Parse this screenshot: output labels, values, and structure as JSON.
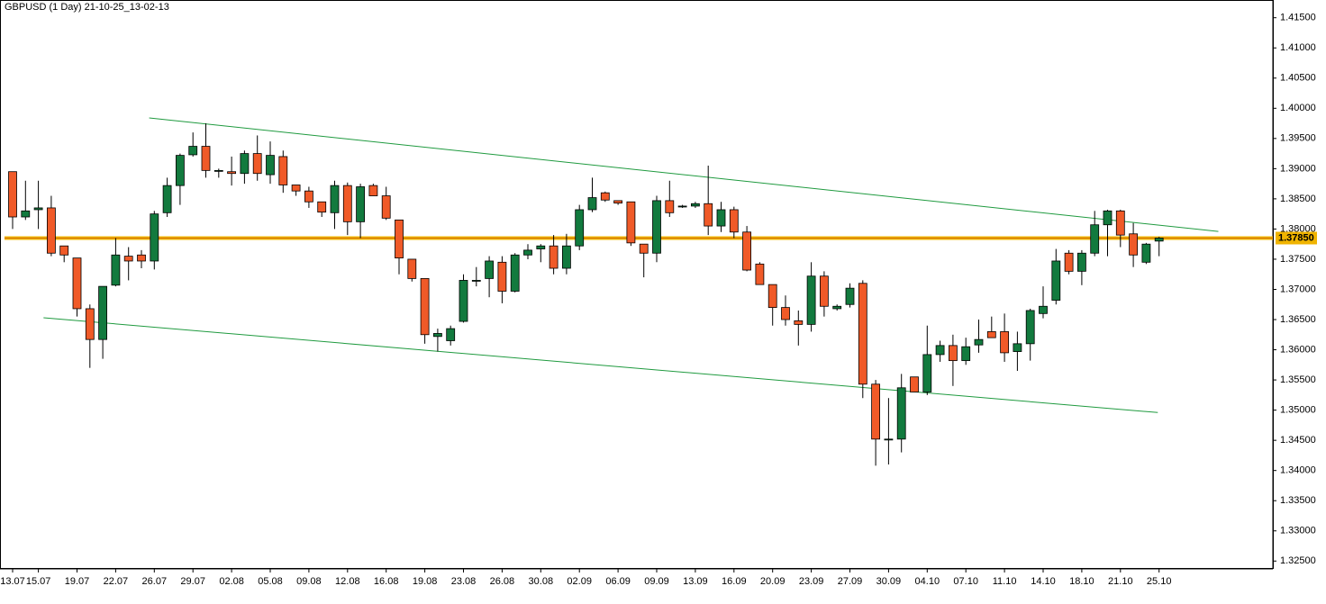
{
  "chart_data": {
    "type": "candlestick",
    "title": "GBPUSD (1 Day) 21-10-25_13-02-13",
    "categories": [
      "13.07",
      null,
      "15.07",
      null,
      null,
      "19.07",
      null,
      null,
      "22.07",
      null,
      null,
      "26.07",
      null,
      null,
      "29.07",
      null,
      null,
      "02.08",
      null,
      null,
      "05.08",
      null,
      null,
      "09.08",
      null,
      null,
      "12.08",
      null,
      null,
      "16.08",
      null,
      null,
      "19.08",
      null,
      null,
      "23.08",
      null,
      null,
      "26.08",
      null,
      null,
      "30.08",
      null,
      null,
      "02.09",
      null,
      null,
      "06.09",
      null,
      null,
      "09.09",
      null,
      null,
      "13.09",
      null,
      null,
      "16.09",
      null,
      null,
      "20.09",
      null,
      null,
      "23.09",
      null,
      null,
      "27.09",
      null,
      null,
      "30.09",
      null,
      null,
      "04.10",
      null,
      null,
      "07.10",
      null,
      null,
      "11.10",
      null,
      null,
      "14.10",
      null,
      null,
      "18.10",
      null,
      null,
      "21.10",
      null,
      null,
      "25.10"
    ],
    "open": [
      1.3895,
      1.382,
      1.3832,
      1.3835,
      1.3772,
      1.3752,
      1.3668,
      1.3617,
      1.3707,
      1.3755,
      1.3757,
      1.3747,
      1.3827,
      1.3872,
      1.3923,
      1.3937,
      1.3897,
      1.3895,
      1.3892,
      1.3925,
      1.389,
      1.392,
      1.3873,
      1.3863,
      1.3845,
      1.3827,
      1.3872,
      1.3812,
      1.3872,
      1.3855,
      1.3815,
      1.375,
      1.3718,
      1.3622,
      1.3615,
      1.3647,
      1.3715,
      1.3718,
      1.3745,
      1.3697,
      1.3757,
      1.3767,
      1.3772,
      1.3735,
      1.3772,
      1.3832,
      1.386,
      1.3847,
      1.3845,
      1.3775,
      1.376,
      1.3847,
      1.3838,
      1.3838,
      1.3842,
      1.3805,
      1.3832,
      1.3795,
      1.3742,
      1.3708,
      1.367,
      1.3648,
      1.3642,
      1.3722,
      1.3668,
      1.3675,
      1.371,
      1.3543,
      1.3452,
      1.3452,
      1.3555,
      1.353,
      1.3592,
      1.3607,
      1.3582,
      1.3608,
      1.363,
      1.363,
      1.3597,
      1.361,
      1.366,
      1.3682,
      1.376,
      1.373,
      1.376,
      1.3807,
      1.383,
      1.3792,
      1.3745,
      1.378
    ],
    "high": [
      1.3895,
      1.388,
      1.388,
      1.3855,
      1.3772,
      1.3752,
      1.3675,
      1.3705,
      1.3785,
      1.377,
      1.3765,
      1.383,
      1.3885,
      1.3925,
      1.396,
      1.3975,
      1.39,
      1.392,
      1.393,
      1.3955,
      1.3945,
      1.393,
      1.3873,
      1.387,
      1.3845,
      1.388,
      1.3877,
      1.3875,
      1.3875,
      1.387,
      1.3815,
      1.375,
      1.3718,
      1.3635,
      1.364,
      1.3725,
      1.3737,
      1.3755,
      1.3755,
      1.376,
      1.3775,
      1.3775,
      1.379,
      1.3792,
      1.384,
      1.3885,
      1.3862,
      1.3847,
      1.3845,
      1.3775,
      1.3855,
      1.388,
      1.384,
      1.3845,
      1.3905,
      1.3845,
      1.3837,
      1.3805,
      1.3745,
      1.3708,
      1.369,
      1.3665,
      1.3745,
      1.373,
      1.3675,
      1.371,
      1.3715,
      1.355,
      1.352,
      1.356,
      1.3555,
      1.364,
      1.3615,
      1.3625,
      1.362,
      1.365,
      1.3655,
      1.366,
      1.363,
      1.3668,
      1.3705,
      1.3767,
      1.3765,
      1.3765,
      1.383,
      1.3832,
      1.3832,
      1.381,
      1.3777,
      1.3787
    ],
    "low": [
      1.38,
      1.3815,
      1.38,
      1.3755,
      1.3745,
      1.3655,
      1.357,
      1.3585,
      1.3705,
      1.3715,
      1.3735,
      1.3733,
      1.382,
      1.384,
      1.392,
      1.3885,
      1.3885,
      1.3872,
      1.3875,
      1.388,
      1.3875,
      1.386,
      1.3855,
      1.3835,
      1.382,
      1.38,
      1.379,
      1.3785,
      1.3855,
      1.3815,
      1.3725,
      1.3713,
      1.361,
      1.3597,
      1.3607,
      1.3645,
      1.3705,
      1.3687,
      1.3677,
      1.3695,
      1.375,
      1.3745,
      1.3725,
      1.3725,
      1.3765,
      1.3828,
      1.3845,
      1.384,
      1.3772,
      1.372,
      1.3745,
      1.382,
      1.3835,
      1.3835,
      1.379,
      1.3795,
      1.3785,
      1.373,
      1.3708,
      1.364,
      1.364,
      1.3607,
      1.363,
      1.3655,
      1.3665,
      1.367,
      1.352,
      1.3408,
      1.341,
      1.343,
      1.353,
      1.3525,
      1.358,
      1.354,
      1.3575,
      1.3595,
      1.362,
      1.358,
      1.3565,
      1.3582,
      1.3652,
      1.3675,
      1.3725,
      1.3707,
      1.3755,
      1.3755,
      1.377,
      1.3737,
      1.3742,
      1.3755
    ],
    "close": [
      1.382,
      1.383,
      1.3835,
      1.376,
      1.3757,
      1.3668,
      1.3617,
      1.3705,
      1.3757,
      1.3747,
      1.3747,
      1.3825,
      1.3872,
      1.3922,
      1.3937,
      1.3897,
      1.3897,
      1.3892,
      1.3925,
      1.3892,
      1.3922,
      1.3873,
      1.3863,
      1.3845,
      1.3828,
      1.3872,
      1.3812,
      1.387,
      1.3855,
      1.3818,
      1.3752,
      1.3718,
      1.3625,
      1.3627,
      1.3635,
      1.3715,
      1.3715,
      1.3747,
      1.3697,
      1.3757,
      1.3765,
      1.3772,
      1.3735,
      1.3772,
      1.3832,
      1.3852,
      1.3848,
      1.3843,
      1.3777,
      1.376,
      1.3847,
      1.3827,
      1.3838,
      1.3842,
      1.3805,
      1.3832,
      1.3795,
      1.3732,
      1.3708,
      1.367,
      1.365,
      1.3642,
      1.3722,
      1.3672,
      1.3672,
      1.3702,
      1.3543,
      1.3452,
      1.3452,
      1.3537,
      1.353,
      1.3592,
      1.3607,
      1.3582,
      1.3605,
      1.3617,
      1.362,
      1.3595,
      1.361,
      1.3665,
      1.3672,
      1.3747,
      1.373,
      1.376,
      1.3807,
      1.383,
      1.379,
      1.3757,
      1.3775,
      1.3785
    ],
    "up_color": "#127a3e",
    "down_color": "#f05a28",
    "ylim": [
      1.3237,
      1.4157
    ],
    "yticks": [
      {
        "value": 1.325,
        "label": "1.32500"
      },
      {
        "value": 1.33,
        "label": "1.33000"
      },
      {
        "value": 1.335,
        "label": "1.33500"
      },
      {
        "value": 1.34,
        "label": "1.34000"
      },
      {
        "value": 1.345,
        "label": "1.34500"
      },
      {
        "value": 1.35,
        "label": "1.35000"
      },
      {
        "value": 1.355,
        "label": "1.35500"
      },
      {
        "value": 1.36,
        "label": "1.36000"
      },
      {
        "value": 1.365,
        "label": "1.36500"
      },
      {
        "value": 1.37,
        "label": "1.37000"
      },
      {
        "value": 1.375,
        "label": "1.37500"
      },
      {
        "value": 1.38,
        "label": "1.38000"
      },
      {
        "value": 1.385,
        "label": "1.38500"
      },
      {
        "value": 1.39,
        "label": "1.39000"
      },
      {
        "value": 1.395,
        "label": "1.39500"
      },
      {
        "value": 1.4,
        "label": "1.40000"
      },
      {
        "value": 1.405,
        "label": "1.40500"
      },
      {
        "value": 1.41,
        "label": "1.41000"
      },
      {
        "value": 1.415,
        "label": "1.41500"
      }
    ],
    "price_line": {
      "value": 1.3785,
      "label": "1.37850",
      "color": "#f0b400"
    },
    "trendlines": [
      {
        "x": [
          10.6,
          93.6
        ],
        "y": [
          1.3984,
          1.3796
        ],
        "color": "#1f9a3f"
      },
      {
        "x": [
          2.4,
          88.9
        ],
        "y": [
          1.3653,
          1.3496
        ],
        "color": "#1f9a3f"
      }
    ]
  }
}
